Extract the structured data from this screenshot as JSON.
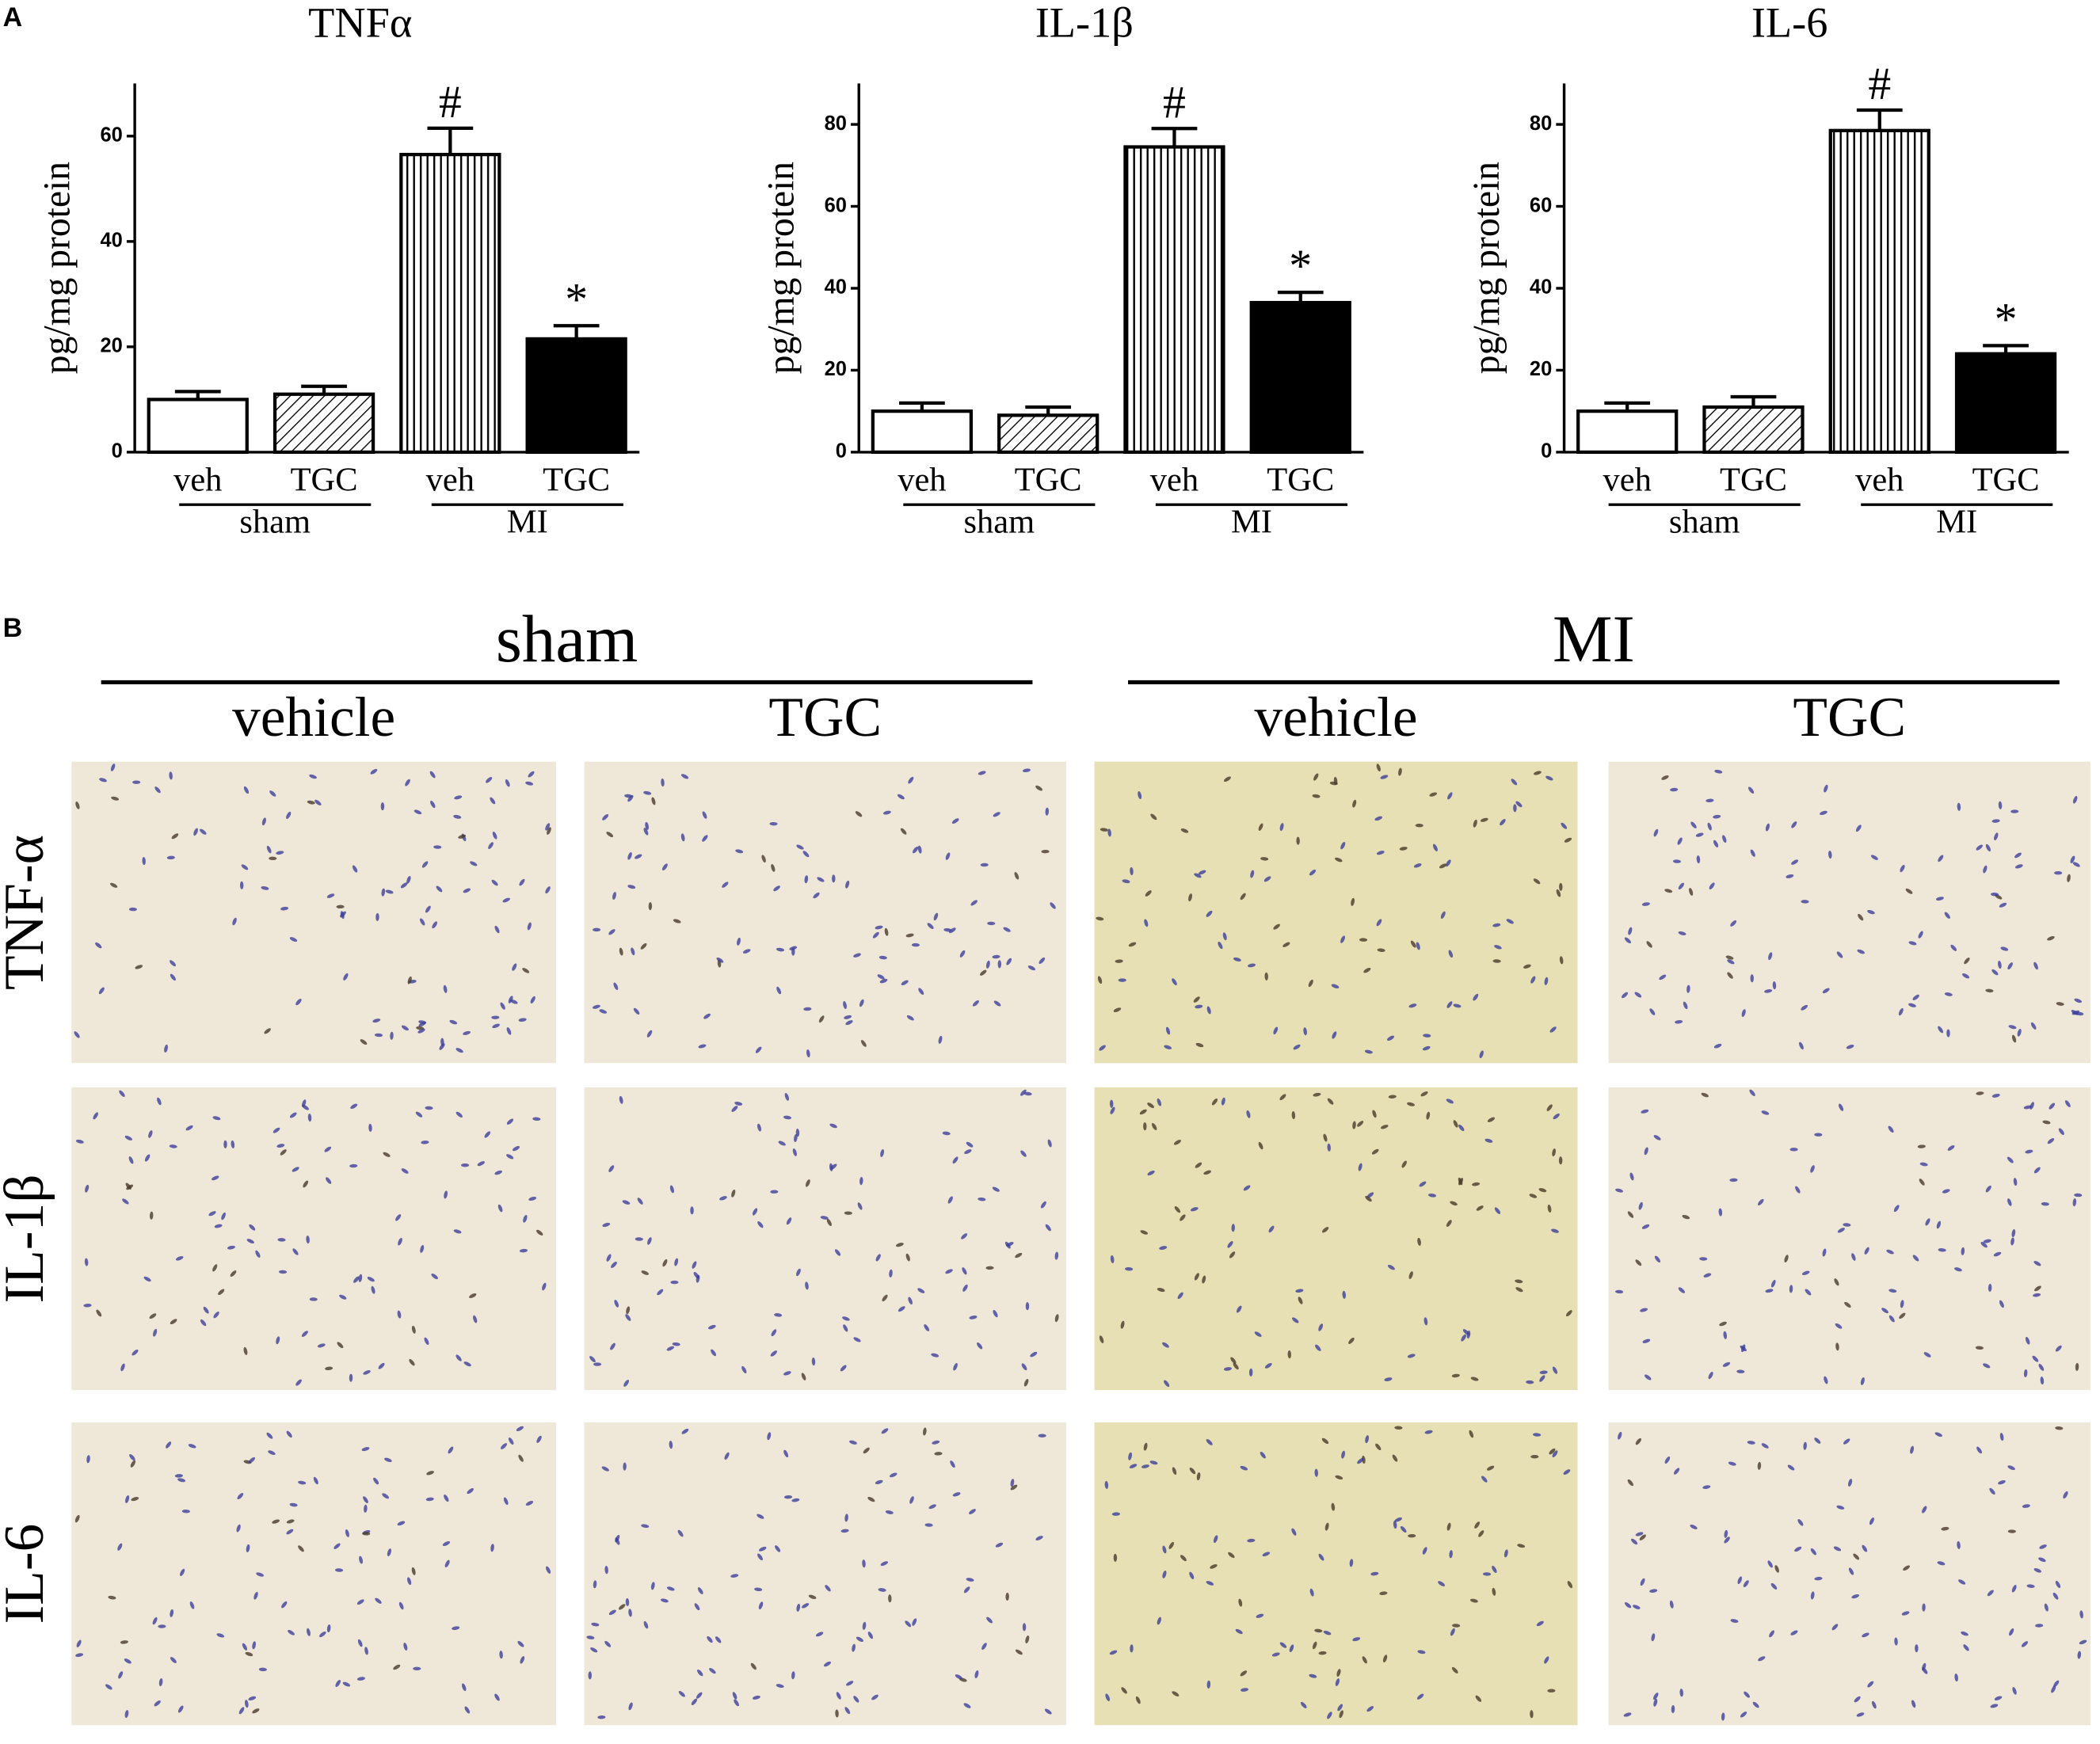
{
  "panel_a_label": "A",
  "chart_data": [
    {
      "type": "bar",
      "title": "TNFα",
      "y_label": "pg/mg protein",
      "categories": [
        "veh",
        "TGC",
        "veh",
        "TGC"
      ],
      "groups": [
        "sham",
        "MI"
      ],
      "values": [
        10,
        11,
        56.5,
        21.5
      ],
      "errors": [
        1.5,
        1.5,
        5,
        2.5
      ],
      "markers": [
        null,
        null,
        "#",
        "*"
      ],
      "bar_fills": [
        "#ffffff",
        "hatch",
        "vertical-lines",
        "#000000"
      ],
      "ylim": [
        0,
        70
      ],
      "yticks": [
        0,
        20,
        40,
        60
      ],
      "grid": false
    },
    {
      "type": "bar",
      "title": "IL-1β",
      "y_label": "pg/mg protein",
      "categories": [
        "veh",
        "TGC",
        "veh",
        "TGC"
      ],
      "groups": [
        "sham",
        "MI"
      ],
      "values": [
        10,
        9,
        74.5,
        36.5
      ],
      "errors": [
        2,
        2,
        4.5,
        2.5
      ],
      "markers": [
        null,
        null,
        "#",
        "*"
      ],
      "bar_fills": [
        "#ffffff",
        "hatch",
        "vertical-lines",
        "#000000"
      ],
      "ylim": [
        0,
        90
      ],
      "yticks": [
        0,
        20,
        40,
        60,
        80
      ],
      "grid": false
    },
    {
      "type": "bar",
      "title": "IL-6",
      "y_label": "pg/mg protein",
      "categories": [
        "veh",
        "TGC",
        "veh",
        "TGC"
      ],
      "groups": [
        "sham",
        "MI"
      ],
      "values": [
        10,
        11,
        78.5,
        24
      ],
      "errors": [
        2,
        2.5,
        5,
        2
      ],
      "markers": [
        null,
        null,
        "#",
        "*"
      ],
      "bar_fills": [
        "#ffffff",
        "hatch",
        "vertical-lines",
        "#000000"
      ],
      "ylim": [
        0,
        90
      ],
      "yticks": [
        0,
        20,
        40,
        60,
        80
      ],
      "grid": false
    }
  ],
  "panel_b": {
    "label": "B",
    "groups": [
      "sham",
      "MI"
    ],
    "columns": [
      "vehicle",
      "TGC",
      "vehicle",
      "TGC"
    ],
    "rows": [
      "TNF-α",
      "IL-1β",
      "IL-6"
    ]
  }
}
